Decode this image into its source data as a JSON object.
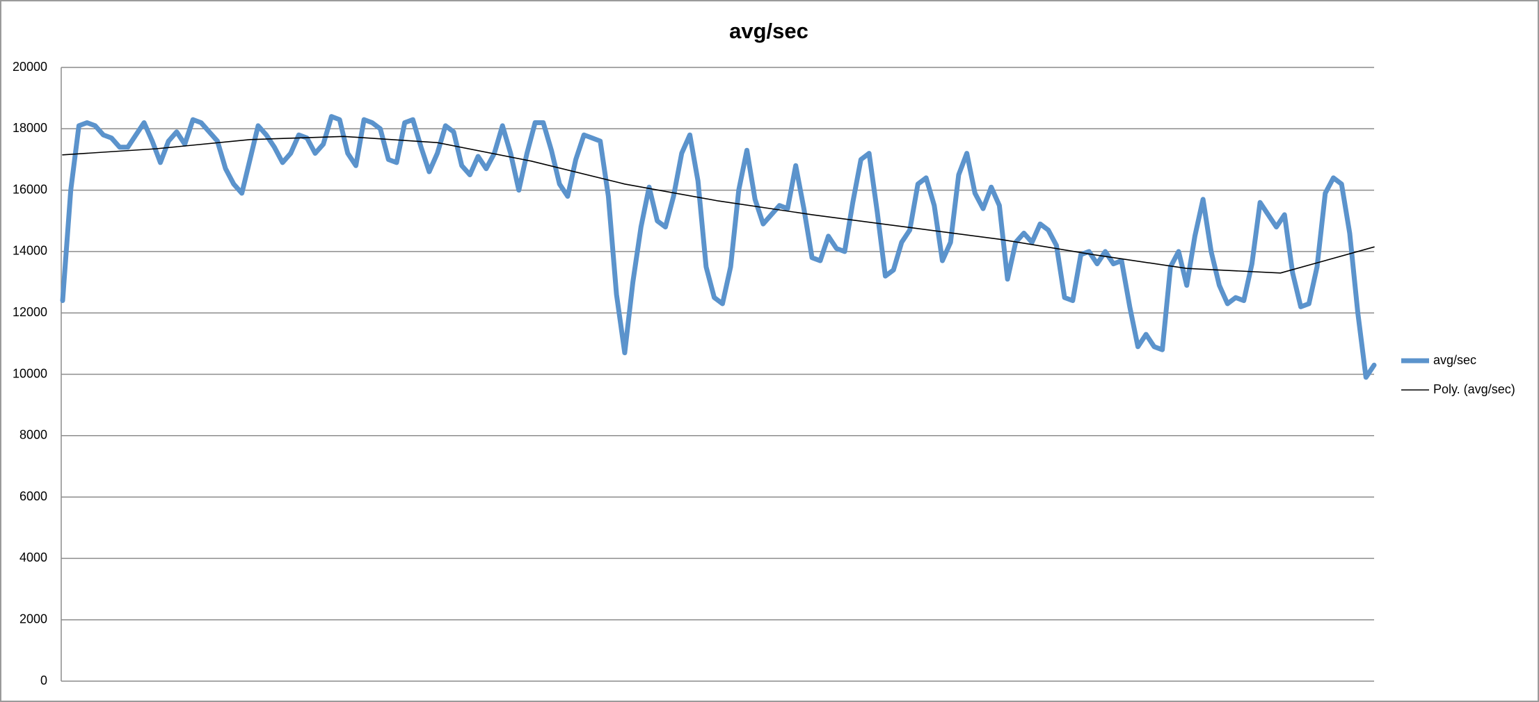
{
  "chart_data": {
    "type": "line",
    "title": "avg/sec",
    "ylim": [
      0,
      20000
    ],
    "yticks": [
      0,
      2000,
      4000,
      6000,
      8000,
      10000,
      12000,
      14000,
      16000,
      18000,
      20000
    ],
    "grid": true,
    "legend": "right",
    "series": [
      {
        "name": "avg/sec",
        "color": "#5b93cc",
        "values": [
          12400,
          16000,
          18100,
          18200,
          18100,
          17800,
          17700,
          17400,
          17400,
          17800,
          18200,
          17600,
          16900,
          17600,
          17900,
          17500,
          18300,
          18200,
          17900,
          17600,
          16700,
          16200,
          15900,
          17000,
          18100,
          17800,
          17400,
          16900,
          17200,
          17800,
          17700,
          17200,
          17500,
          18400,
          18300,
          17200,
          16800,
          18300,
          18200,
          18000,
          17000,
          16900,
          18200,
          18300,
          17400,
          16600,
          17200,
          18100,
          17900,
          16800,
          16500,
          17100,
          16700,
          17200,
          18100,
          17200,
          16000,
          17200,
          18200,
          18200,
          17300,
          16200,
          15800,
          17000,
          17800,
          17700,
          17600,
          15800,
          12600,
          10700,
          13000,
          14800,
          16100,
          15000,
          14800,
          15800,
          17200,
          17800,
          16300,
          13500,
          12500,
          12300,
          13500,
          16000,
          17300,
          15700,
          14900,
          15200,
          15500,
          15400,
          16800,
          15400,
          13800,
          13700,
          14500,
          14100,
          14000,
          15600,
          17000,
          17200,
          15300,
          13200,
          13400,
          14300,
          14700,
          16200,
          16400,
          15500,
          13700,
          14300,
          16500,
          17200,
          15900,
          15400,
          16100,
          15500,
          13100,
          14300,
          14600,
          14300,
          14900,
          14700,
          14200,
          12500,
          12400,
          13900,
          14000,
          13600,
          14000,
          13600,
          13700,
          12200,
          10900,
          11300,
          10900,
          10800,
          13500,
          14000,
          12900,
          14500,
          15700,
          14000,
          12900,
          12300,
          12500,
          12400,
          13600,
          15600,
          15200,
          14800,
          15200,
          13300,
          12200,
          12300,
          13500,
          15900,
          16400,
          16200,
          14600,
          12000,
          9900,
          10300
        ]
      },
      {
        "name": "Poly. (avg/sec)",
        "color": "#000000",
        "values": [
          17150,
          17350,
          17650,
          17750,
          17550,
          16950,
          16200,
          15650,
          15200,
          14800,
          14400,
          13900,
          13450,
          13300,
          14150
        ]
      }
    ]
  }
}
